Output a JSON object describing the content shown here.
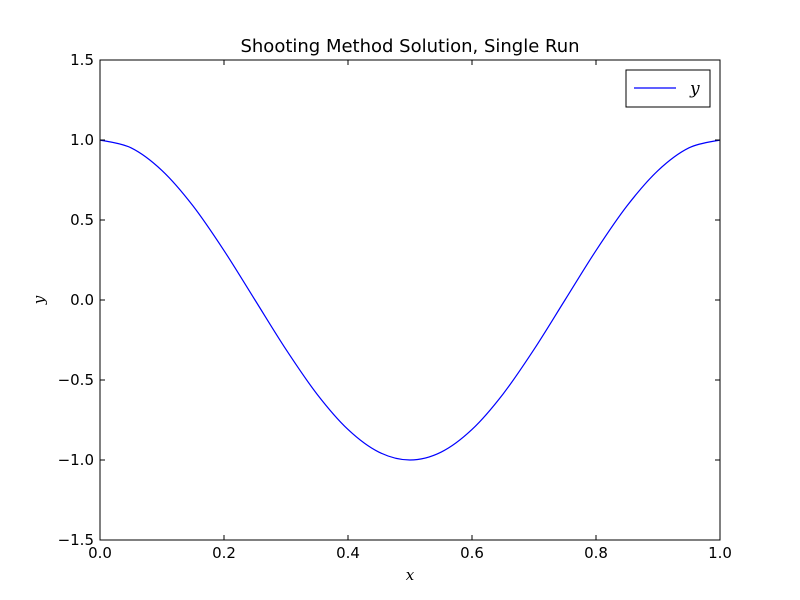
{
  "chart_data": {
    "type": "line",
    "title": "Shooting Method Solution, Single Run",
    "xlabel": "x",
    "ylabel": "y",
    "xlim": [
      0.0,
      1.0
    ],
    "ylim": [
      -1.5,
      1.5
    ],
    "xticks": [
      0.0,
      0.2,
      0.4,
      0.6,
      0.8,
      1.0
    ],
    "xtick_labels": [
      "0.0",
      "0.2",
      "0.4",
      "0.6",
      "0.8",
      "1.0"
    ],
    "yticks": [
      -1.5,
      -1.0,
      -0.5,
      0.0,
      0.5,
      1.0,
      1.5
    ],
    "ytick_labels": [
      "−1.5",
      "−1.0",
      "−0.5",
      "0.0",
      "0.5",
      "1.0",
      "1.5"
    ],
    "grid": false,
    "legend": {
      "position": "top-right",
      "entries": [
        "y"
      ]
    },
    "series": [
      {
        "name": "y",
        "color": "#0000ff",
        "x": [
          0.0,
          0.05,
          0.1,
          0.15,
          0.2,
          0.25,
          0.3,
          0.35,
          0.4,
          0.45,
          0.5,
          0.55,
          0.6,
          0.65,
          0.7,
          0.75,
          0.8,
          0.85,
          0.9,
          0.95,
          1.0
        ],
        "y": [
          1.0,
          0.951,
          0.809,
          0.588,
          0.309,
          0.0,
          -0.309,
          -0.588,
          -0.809,
          -0.951,
          -1.0,
          -0.951,
          -0.809,
          -0.588,
          -0.309,
          0.0,
          0.309,
          0.588,
          0.809,
          0.951,
          1.0
        ]
      }
    ]
  }
}
